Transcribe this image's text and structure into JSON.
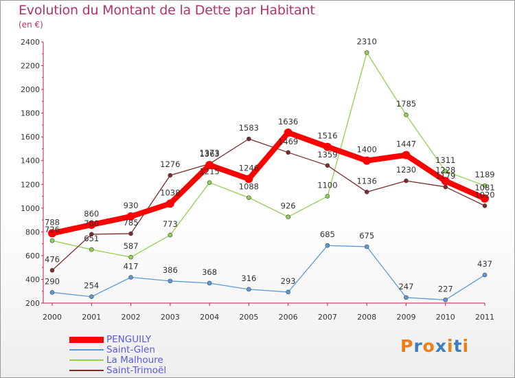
{
  "title": "Evolution du Montant de la Dette par Habitant",
  "subtitle": "(en €)",
  "chart_data": {
    "type": "line",
    "title": "Evolution du Montant de la Dette par Habitant",
    "subtitle": "(en €)",
    "xlabel": "",
    "ylabel": "",
    "x": [
      "2000",
      "2001",
      "2002",
      "2003",
      "2004",
      "2005",
      "2006",
      "2007",
      "2008",
      "2009",
      "2010",
      "2011"
    ],
    "ylim": [
      200,
      2400
    ],
    "yticks": [
      200,
      400,
      600,
      800,
      1000,
      1200,
      1400,
      1600,
      1800,
      2000,
      2200,
      2400
    ],
    "grid": false,
    "legend_position": "bottom-left",
    "series": [
      {
        "name": "PENGUILY",
        "color": "#ff0000",
        "values": [
          788,
          860,
          930,
          1038,
          1363,
          1246,
          1636,
          1516,
          1400,
          1447,
          1228,
          1081
        ]
      },
      {
        "name": "Saint-Glen",
        "color": "#5b9bd5",
        "values": [
          290,
          254,
          417,
          386,
          368,
          316,
          293,
          685,
          675,
          247,
          227,
          437
        ]
      },
      {
        "name": "La Malhoure",
        "color": "#92d050",
        "values": [
          726,
          651,
          587,
          773,
          1215,
          1088,
          926,
          1100,
          2310,
          1785,
          1311,
          1189
        ]
      },
      {
        "name": "Saint-Trimoël",
        "color": "#7b2c2c",
        "values": [
          476,
          780,
          785,
          1276,
          1373,
          1583,
          1469,
          1359,
          1136,
          1230,
          1179,
          1020
        ]
      }
    ]
  },
  "logo": {
    "text": "Proxiti",
    "colors": [
      "#f07d16",
      "#3a7fc1",
      "#f07d16",
      "#3a7fc1",
      "#f07d16",
      "#3a7fc1",
      "#f07d16"
    ]
  }
}
